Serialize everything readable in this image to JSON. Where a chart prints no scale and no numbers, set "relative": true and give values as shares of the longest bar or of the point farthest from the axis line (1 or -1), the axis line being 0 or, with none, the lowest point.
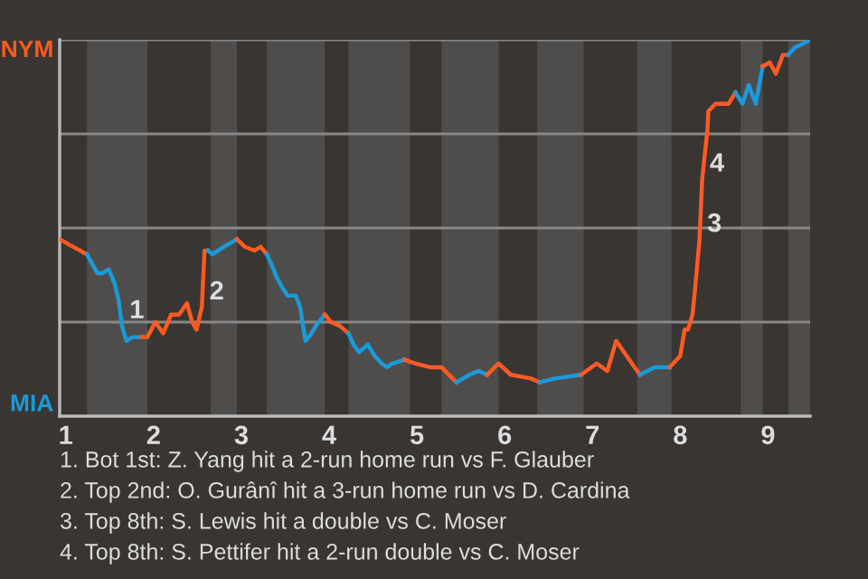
{
  "chart_data": {
    "type": "line",
    "relative": true,
    "series": [
      {
        "color": "#ff5a1f",
        "x": [
          0.93,
          1.24
        ],
        "values": [
          0.47,
          0.43
        ]
      },
      {
        "color": "#1a9ad6",
        "x": [
          1.24,
          1.36,
          1.42,
          1.49,
          1.56,
          1.6,
          1.64,
          1.69,
          1.76,
          1.87
        ],
        "values": [
          0.43,
          0.38,
          0.38,
          0.39,
          0.35,
          0.31,
          0.24,
          0.2,
          0.21,
          0.21
        ]
      },
      {
        "color": "#ff5a20",
        "x": [
          1.87,
          1.93,
          2.02,
          2.11,
          2.2,
          2.29,
          2.38,
          2.44,
          2.49,
          2.55,
          2.58,
          2.62
        ],
        "values": [
          0.21,
          0.21,
          0.25,
          0.22,
          0.27,
          0.27,
          0.3,
          0.25,
          0.23,
          0.29,
          0.44,
          0.44
        ]
      },
      {
        "color": "#1a9ad7",
        "x": [
          2.62,
          2.67,
          2.8,
          2.95
        ],
        "values": [
          0.44,
          0.43,
          0.45,
          0.47
        ]
      },
      {
        "color": "#ff5a21",
        "x": [
          2.95,
          3.04,
          3.15,
          3.22,
          3.29
        ],
        "values": [
          0.47,
          0.45,
          0.44,
          0.45,
          0.43
        ]
      },
      {
        "color": "#1a9ad8",
        "x": [
          3.29,
          3.35,
          3.4,
          3.47,
          3.53,
          3.62,
          3.67,
          3.73,
          3.8,
          3.85,
          3.95
        ],
        "values": [
          0.43,
          0.4,
          0.37,
          0.34,
          0.32,
          0.32,
          0.29,
          0.2,
          0.22,
          0.24,
          0.27
        ]
      },
      {
        "color": "#ff5a22",
        "x": [
          3.95,
          4.02,
          4.12,
          4.22
        ],
        "values": [
          0.27,
          0.25,
          0.24,
          0.22
        ]
      },
      {
        "color": "#1a9ad9",
        "x": [
          4.22,
          4.28,
          4.34,
          4.44,
          4.52,
          4.6,
          4.66,
          4.72,
          4.86
        ],
        "values": [
          0.22,
          0.19,
          0.17,
          0.19,
          0.16,
          0.14,
          0.13,
          0.14,
          0.15
        ]
      },
      {
        "color": "#ff5a23",
        "x": [
          4.86,
          4.98,
          5.15,
          5.28,
          5.45
        ],
        "values": [
          0.15,
          0.14,
          0.13,
          0.13,
          0.09
        ]
      },
      {
        "color": "#1a9ada",
        "x": [
          5.45,
          5.6,
          5.7,
          5.8
        ],
        "values": [
          0.09,
          0.11,
          0.12,
          0.11
        ]
      },
      {
        "color": "#ff5a24",
        "x": [
          5.8,
          5.93,
          6.07,
          6.3,
          6.4
        ],
        "values": [
          0.11,
          0.14,
          0.11,
          0.1,
          0.09
        ]
      },
      {
        "color": "#1a9adb",
        "x": [
          6.4,
          6.57,
          6.87
        ],
        "values": [
          0.09,
          0.1,
          0.11
        ]
      },
      {
        "color": "#ff5a25",
        "x": [
          6.87,
          7.05,
          7.17,
          7.27,
          7.39,
          7.54
        ],
        "values": [
          0.11,
          0.14,
          0.12,
          0.2,
          0.16,
          0.11
        ]
      },
      {
        "color": "#1a9adc",
        "x": [
          7.54,
          7.71,
          7.88
        ],
        "values": [
          0.11,
          0.13,
          0.13
        ]
      },
      {
        "color": "#ff5a26",
        "x": [
          7.88,
          8.0,
          8.05,
          8.09,
          8.14,
          8.17,
          8.22,
          8.25,
          8.31,
          8.32,
          8.4,
          8.55,
          8.63
        ],
        "values": [
          0.13,
          0.16,
          0.23,
          0.23,
          0.27,
          0.34,
          0.47,
          0.63,
          0.76,
          0.81,
          0.83,
          0.83,
          0.86
        ]
      },
      {
        "color": "#1a9add",
        "x": [
          8.63,
          8.71,
          8.78,
          8.86,
          8.94
        ],
        "values": [
          0.86,
          0.83,
          0.88,
          0.83,
          0.93
        ]
      },
      {
        "color": "#ff5a27",
        "x": [
          8.94,
          9.02,
          9.09,
          9.17,
          9.23
        ],
        "values": [
          0.93,
          0.94,
          0.91,
          0.96,
          0.96
        ]
      },
      {
        "color": "#1a9ade",
        "x": [
          9.23,
          9.31,
          9.4,
          9.48
        ],
        "values": [
          0.96,
          0.98,
          0.99,
          1.0
        ]
      }
    ],
    "xlim": [
      0.93,
      9.48
    ],
    "xticks": [
      1,
      2,
      3,
      4,
      5,
      6,
      7,
      8,
      9
    ],
    "grid": "y",
    "bands": [
      {
        "axis": "x",
        "from": 1.24,
        "to": 1.93,
        "color": "#4f4d4b"
      },
      {
        "axis": "x",
        "from": 2.65,
        "to": 2.95,
        "color": "#4f4d4b"
      },
      {
        "axis": "x",
        "from": 3.29,
        "to": 3.95,
        "color": "#4f4d4b"
      },
      {
        "axis": "x",
        "from": 4.22,
        "to": 4.92,
        "color": "#4f4d4b"
      },
      {
        "axis": "x",
        "from": 5.28,
        "to": 5.93,
        "color": "#4f4d4b"
      },
      {
        "axis": "x",
        "from": 6.37,
        "to": 6.9,
        "color": "#4f4d4b"
      },
      {
        "axis": "x",
        "from": 7.51,
        "to": 7.9,
        "color": "#4f4d4b"
      },
      {
        "axis": "x",
        "from": 8.69,
        "to": 8.94,
        "color": "#4f4d4b"
      },
      {
        "axis": "x",
        "from": 9.23,
        "to": 9.48,
        "color": "#4f4d4b"
      }
    ],
    "annotations": [
      "NYM",
      "MIA",
      {
        "text": "1",
        "x": 1.64,
        "y": 0.24
      },
      {
        "text": "2",
        "x": 2.55,
        "y": 0.29
      },
      {
        "text": "3",
        "x": 8.22,
        "y": 0.47
      },
      {
        "text": "4",
        "x": 8.25,
        "y": 0.63
      },
      "1. Bot 1st: Z. Yang hit a 2-run home run vs F. Glauber",
      "2. Top 2nd: O. Gurânî hit a 3-run home run vs D. Cardina",
      "3. Top 8th: S. Lewis hit a double vs C. Moser",
      "4. Top 8th: S. Pettifer hit a 2-run double vs C. Moser"
    ],
    "line_style": "solid",
    "marker": "none"
  }
}
